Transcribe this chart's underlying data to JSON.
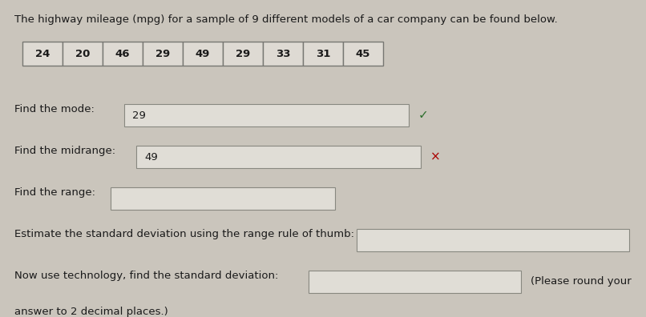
{
  "title": "The highway mileage (mpg) for a sample of 9 different models of a car company can be found below.",
  "data_values": [
    "24",
    "20",
    "46",
    "29",
    "49",
    "29",
    "33",
    "31",
    "45"
  ],
  "background_color": "#cac5bc",
  "box_bg": "#dedad3",
  "input_bg": "#e0ddd6",
  "text_color": "#1a1a1a",
  "title_fontsize": 9.5,
  "body_fontsize": 9.5,
  "cell_fontsize": 9.5,
  "checkmark_color": "#2d6e2d",
  "cross_color": "#aa0000"
}
